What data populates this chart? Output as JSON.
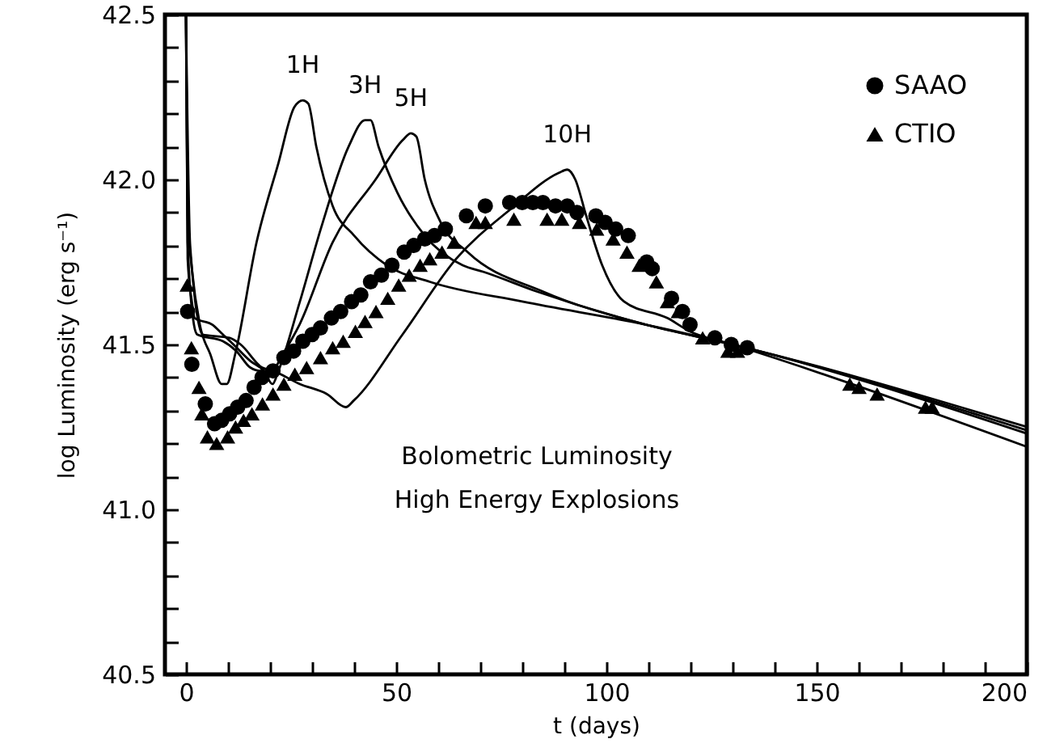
{
  "chart_data": {
    "type": "scatter",
    "xlabel": "t (days)",
    "ylabel": "log Luminosity (erg s⁻¹)",
    "xlim": [
      -5,
      200
    ],
    "ylim": [
      40.5,
      42.5
    ],
    "xticks": [
      0,
      {
        "value": 10,
        "label": null
      },
      {
        "value": 20,
        "label": null
      },
      {
        "value": 30,
        "label": null
      },
      {
        "value": 40,
        "label": null
      },
      50,
      {
        "value": 60,
        "label": null
      },
      {
        "value": 70,
        "label": null
      },
      {
        "value": 80,
        "label": null
      },
      {
        "value": 90,
        "label": null
      },
      100,
      {
        "value": 110,
        "label": null
      },
      {
        "value": 120,
        "label": null
      },
      {
        "value": 130,
        "label": null
      },
      {
        "value": 140,
        "label": null
      },
      150,
      {
        "value": 160,
        "label": null
      },
      {
        "value": 170,
        "label": null
      },
      {
        "value": 180,
        "label": null
      },
      {
        "value": 190,
        "label": null
      },
      200
    ],
    "yticks": [
      40.5,
      {
        "value": 40.6,
        "label": null
      },
      {
        "value": 40.7,
        "label": null
      },
      {
        "value": 40.8,
        "label": null
      },
      {
        "value": 40.9,
        "label": null
      },
      {
        "value": 41,
        "label": "41.0"
      },
      {
        "value": 41.1,
        "label": null
      },
      {
        "value": 41.2,
        "label": null
      },
      {
        "value": 41.3,
        "label": null
      },
      {
        "value": 41.4,
        "label": null
      },
      41.5,
      {
        "value": 41.6,
        "label": null
      },
      {
        "value": 41.7,
        "label": null
      },
      {
        "value": 41.8,
        "label": null
      },
      {
        "value": 41.9,
        "label": null
      },
      {
        "value": 42,
        "label": "42.0"
      },
      {
        "value": 42.1,
        "label": null
      },
      {
        "value": 42.2,
        "label": null
      },
      {
        "value": 42.3,
        "label": null
      },
      {
        "value": 42.4,
        "label": null
      },
      42.5
    ],
    "grid": false,
    "legend": "top right",
    "annotations": [
      "Bolometric Luminosity",
      "High Energy Explosions"
    ],
    "series": [
      {
        "name": "SAAO",
        "color": "#000000",
        "marker": "circle",
        "x": [
          0.4,
          1.4,
          4.6,
          6.8,
          8.5,
          10.4,
          12.3,
          14.3,
          16.2,
          18.1,
          20.7,
          23.3,
          25.6,
          27.8,
          30,
          32,
          34.6,
          36.8,
          39.4,
          41.6,
          43.9,
          46.5,
          49,
          51.9,
          54.2,
          56.8,
          59.1,
          61.7,
          66.7,
          71.2,
          77,
          80,
          82.5,
          84.9,
          87.9,
          90.7,
          93,
          97.5,
          99.7,
          102.2,
          105.2,
          109.6,
          110.9,
          115.5,
          118.1,
          119.9,
          125.8,
          129.7,
          133.5
        ],
        "values": [
          41.6,
          41.44,
          41.32,
          41.26,
          41.27,
          41.29,
          41.31,
          41.33,
          41.37,
          41.4,
          41.42,
          41.46,
          41.48,
          41.51,
          41.53,
          41.55,
          41.58,
          41.6,
          41.63,
          41.65,
          41.69,
          41.71,
          41.74,
          41.78,
          41.8,
          41.82,
          41.83,
          41.85,
          41.89,
          41.92,
          41.93,
          41.93,
          41.93,
          41.93,
          41.92,
          41.92,
          41.9,
          41.89,
          41.87,
          41.85,
          41.83,
          41.75,
          41.73,
          41.64,
          41.6,
          41.56,
          41.52,
          41.5,
          41.49
        ]
      },
      {
        "name": "CTIO",
        "color": "#000000",
        "marker": "triangle",
        "x": [
          0.3,
          1.3,
          3.1,
          3.8,
          5.1,
          7.3,
          9.9,
          11.8,
          13.7,
          15.7,
          18.2,
          20.7,
          23.3,
          25.9,
          28.7,
          32,
          34.9,
          37.4,
          40.3,
          42.6,
          45.2,
          48,
          50.6,
          53.1,
          55.7,
          58,
          60.9,
          63.8,
          69,
          71.2,
          78,
          85.9,
          89.4,
          93.6,
          97.7,
          101.6,
          104.9,
          107.8,
          111.9,
          114.5,
          117.1,
          122.9,
          128.9,
          131.2,
          157.9,
          160.1,
          164.4,
          175.9,
          177.5
        ],
        "values": [
          41.68,
          41.49,
          41.37,
          41.29,
          41.22,
          41.2,
          41.22,
          41.25,
          41.27,
          41.29,
          41.32,
          41.35,
          41.38,
          41.41,
          41.43,
          41.46,
          41.49,
          41.51,
          41.54,
          41.57,
          41.6,
          41.64,
          41.68,
          41.71,
          41.74,
          41.76,
          41.78,
          41.81,
          41.87,
          41.87,
          41.88,
          41.88,
          41.88,
          41.87,
          41.85,
          41.82,
          41.78,
          41.74,
          41.69,
          41.63,
          41.6,
          41.52,
          41.48,
          41.48,
          41.38,
          41.37,
          41.35,
          41.31,
          41.31
        ]
      },
      {
        "name": "1H",
        "type": "line",
        "color": "#000000",
        "x": [
          0,
          0.4,
          1.4,
          3.3,
          5.8,
          8.5,
          9.7,
          11.7,
          16.8,
          22,
          25.8,
          27.8,
          29.1,
          31,
          34.9,
          40,
          47.8,
          58,
          80,
          109.4,
          130,
          200
        ],
        "values": [
          42.5,
          41.89,
          41.73,
          41.56,
          41.47,
          41.38,
          41.38,
          41.47,
          41.81,
          42.05,
          42.22,
          42.24,
          42.23,
          42.1,
          41.92,
          41.83,
          41.74,
          41.69,
          41.63,
          41.56,
          41.5,
          41.25
        ]
      },
      {
        "name": "3H",
        "type": "line",
        "color": "#000000",
        "x": [
          0,
          0.4,
          1.4,
          2.1,
          6.3,
          8.8,
          11.3,
          15.3,
          18.5,
          20.6,
          22,
          27.1,
          32.3,
          38.7,
          42.6,
          43.9,
          45.8,
          50.3,
          56.8,
          65.8,
          70.8,
          83.6,
          109.4,
          130,
          200
        ],
        "values": [
          42.5,
          41.76,
          41.63,
          41.58,
          41.56,
          41.53,
          41.5,
          41.45,
          41.42,
          41.38,
          41.42,
          41.63,
          41.86,
          42.1,
          42.18,
          42.18,
          42.1,
          41.96,
          41.83,
          41.74,
          41.72,
          41.66,
          41.56,
          41.5,
          41.23
        ]
      },
      {
        "name": "5H",
        "type": "line",
        "color": "#000000",
        "x": [
          0,
          0.4,
          1.9,
          2.7,
          8.8,
          12,
          15.3,
          17.8,
          20.4,
          23,
          27,
          34.9,
          45.1,
          51.6,
          53.5,
          54.8,
          56.8,
          60.6,
          67,
          85,
          109.4,
          130,
          200
        ],
        "values": [
          42.5,
          41.81,
          41.56,
          41.53,
          41.51,
          41.48,
          41.43,
          41.42,
          41.42,
          41.47,
          41.56,
          41.81,
          42,
          42.12,
          42.14,
          42.13,
          42,
          41.87,
          41.78,
          41.66,
          41.56,
          41.5,
          41.24
        ]
      },
      {
        "name": "10H",
        "type": "line",
        "color": "#000000",
        "x": [
          0,
          1,
          4,
          10.4,
          13,
          18.1,
          20.7,
          27.1,
          33.5,
          38,
          39.9,
          51.5,
          64.3,
          77.2,
          88.7,
          90.7,
          92.6,
          95.2,
          99,
          104.2,
          114.5,
          119.8,
          130,
          200
        ],
        "values": [
          42.5,
          41.8,
          41.53,
          41.52,
          41.5,
          41.43,
          41.42,
          41.38,
          41.35,
          41.31,
          41.33,
          41.53,
          41.76,
          41.91,
          42.02,
          42.03,
          42,
          41.89,
          41.74,
          41.63,
          41.58,
          41.54,
          41.5,
          41.19
        ]
      }
    ]
  }
}
